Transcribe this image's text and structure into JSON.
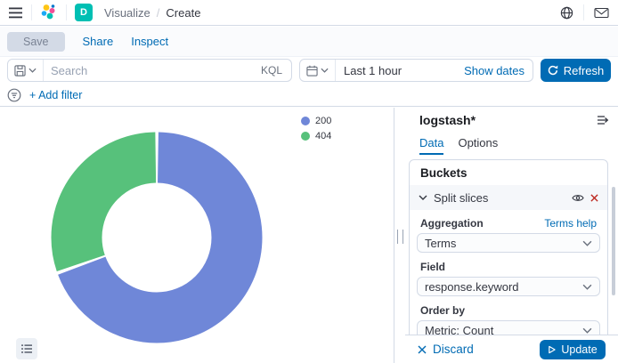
{
  "header": {
    "breadcrumbs": {
      "section": "Visualize",
      "current": "Create"
    },
    "space_badge": "D"
  },
  "toolbar": {
    "save_label": "Save",
    "share_label": "Share",
    "inspect_label": "Inspect"
  },
  "query_bar": {
    "search_placeholder": "Search",
    "query_language": "KQL",
    "time_range": "Last 1 hour",
    "show_dates_label": "Show dates",
    "refresh_label": "Refresh"
  },
  "filter_bar": {
    "add_filter_label": "+ Add filter"
  },
  "chart_data": {
    "type": "pie",
    "donut": true,
    "title": "",
    "labels": [
      "200",
      "404"
    ],
    "values_pct": [
      69.5,
      30.5
    ],
    "colors": [
      "#6F87D8",
      "#57C17B"
    ],
    "legend_position": "top-right",
    "start_angle_deg": 0
  },
  "side_panel": {
    "index_pattern": "logstash*",
    "tabs": [
      {
        "label": "Data"
      },
      {
        "label": "Options"
      }
    ],
    "active_tab": "Data",
    "buckets": {
      "section_title": "Buckets",
      "bucket_label": "Split slices",
      "aggregation_label": "Aggregation",
      "aggregation_value": "Terms",
      "terms_help_label": "Terms help",
      "field_label": "Field",
      "field_value": "response.keyword",
      "order_by_label": "Order by",
      "order_by_value": "Metric: Count"
    },
    "footer": {
      "discard_label": "Discard",
      "update_label": "Update"
    }
  },
  "colors": {
    "primary": "#006BB4",
    "danger": "#BD271E",
    "border": "#D3DAE6",
    "text": "#343741",
    "subdued": "#69707D",
    "space_badge_bg": "#00BFB3"
  }
}
